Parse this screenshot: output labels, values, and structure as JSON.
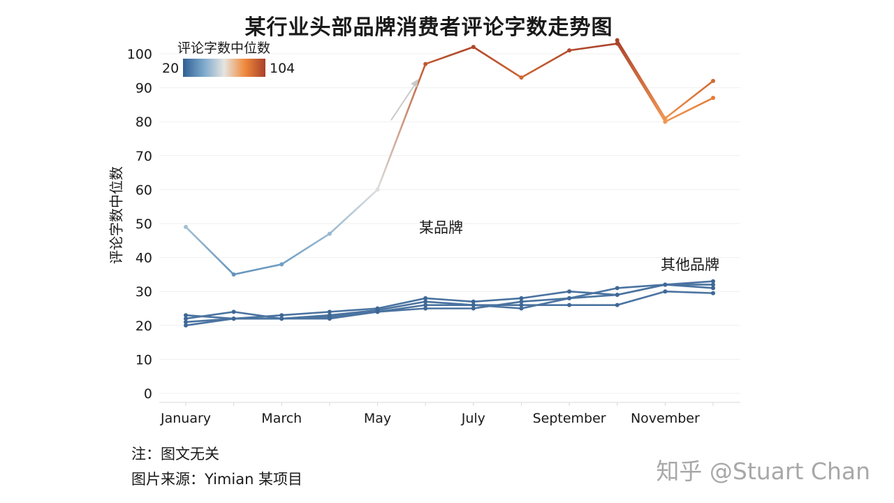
{
  "chart_data": {
    "type": "line",
    "title": "某行业头部品牌消费者评论字数走势图",
    "ylabel": "评论字数中位数",
    "xlabel": "",
    "ylim": [
      0,
      105
    ],
    "yticks": [
      0,
      10,
      20,
      30,
      40,
      50,
      60,
      70,
      80,
      90,
      100
    ],
    "grid": true,
    "x_count": 12,
    "x_tick_labels": [
      {
        "index": 0,
        "label": "January"
      },
      {
        "index": 2,
        "label": "March"
      },
      {
        "index": 4,
        "label": "May"
      },
      {
        "index": 6,
        "label": "July"
      },
      {
        "index": 8,
        "label": "September"
      },
      {
        "index": 10,
        "label": "November"
      }
    ],
    "color_legend": {
      "title": "评论字数中位数",
      "min": 20,
      "max": 104,
      "min_label": "20",
      "max_label": "104",
      "colors": [
        "#2f5f93",
        "#7ba8cc",
        "#e6e4e0",
        "#f08a3c",
        "#a8402a"
      ],
      "placement": "top-left"
    },
    "annotations": [
      {
        "text": "某品牌",
        "target": "focus"
      },
      {
        "text": "其他品牌",
        "target": "others"
      }
    ],
    "series": [
      {
        "group": "focus",
        "values": [
          49,
          35,
          38,
          47,
          60,
          97,
          102,
          93,
          101,
          103,
          80,
          87
        ]
      },
      {
        "group": "focus",
        "values": [
          null,
          null,
          null,
          null,
          null,
          null,
          null,
          null,
          null,
          104,
          81,
          92
        ]
      },
      {
        "group": "others",
        "values": [
          20,
          22,
          22,
          22,
          24,
          26,
          26,
          26,
          26,
          26,
          30,
          29.5
        ]
      },
      {
        "group": "others",
        "values": [
          21,
          22,
          22,
          22.5,
          24,
          25,
          25,
          27,
          28,
          29,
          32,
          31
        ]
      },
      {
        "group": "others",
        "values": [
          22,
          24,
          22,
          23,
          24.5,
          27,
          26,
          25,
          28,
          31,
          32,
          32
        ]
      },
      {
        "group": "others",
        "values": [
          23,
          22,
          23,
          24,
          25,
          28,
          27,
          28,
          30,
          29,
          32,
          33
        ]
      }
    ]
  },
  "footnotes": {
    "note": "注：图文无关",
    "source": "图片来源：Yimian 某项目"
  },
  "watermark": "知乎 @Stuart Chan"
}
